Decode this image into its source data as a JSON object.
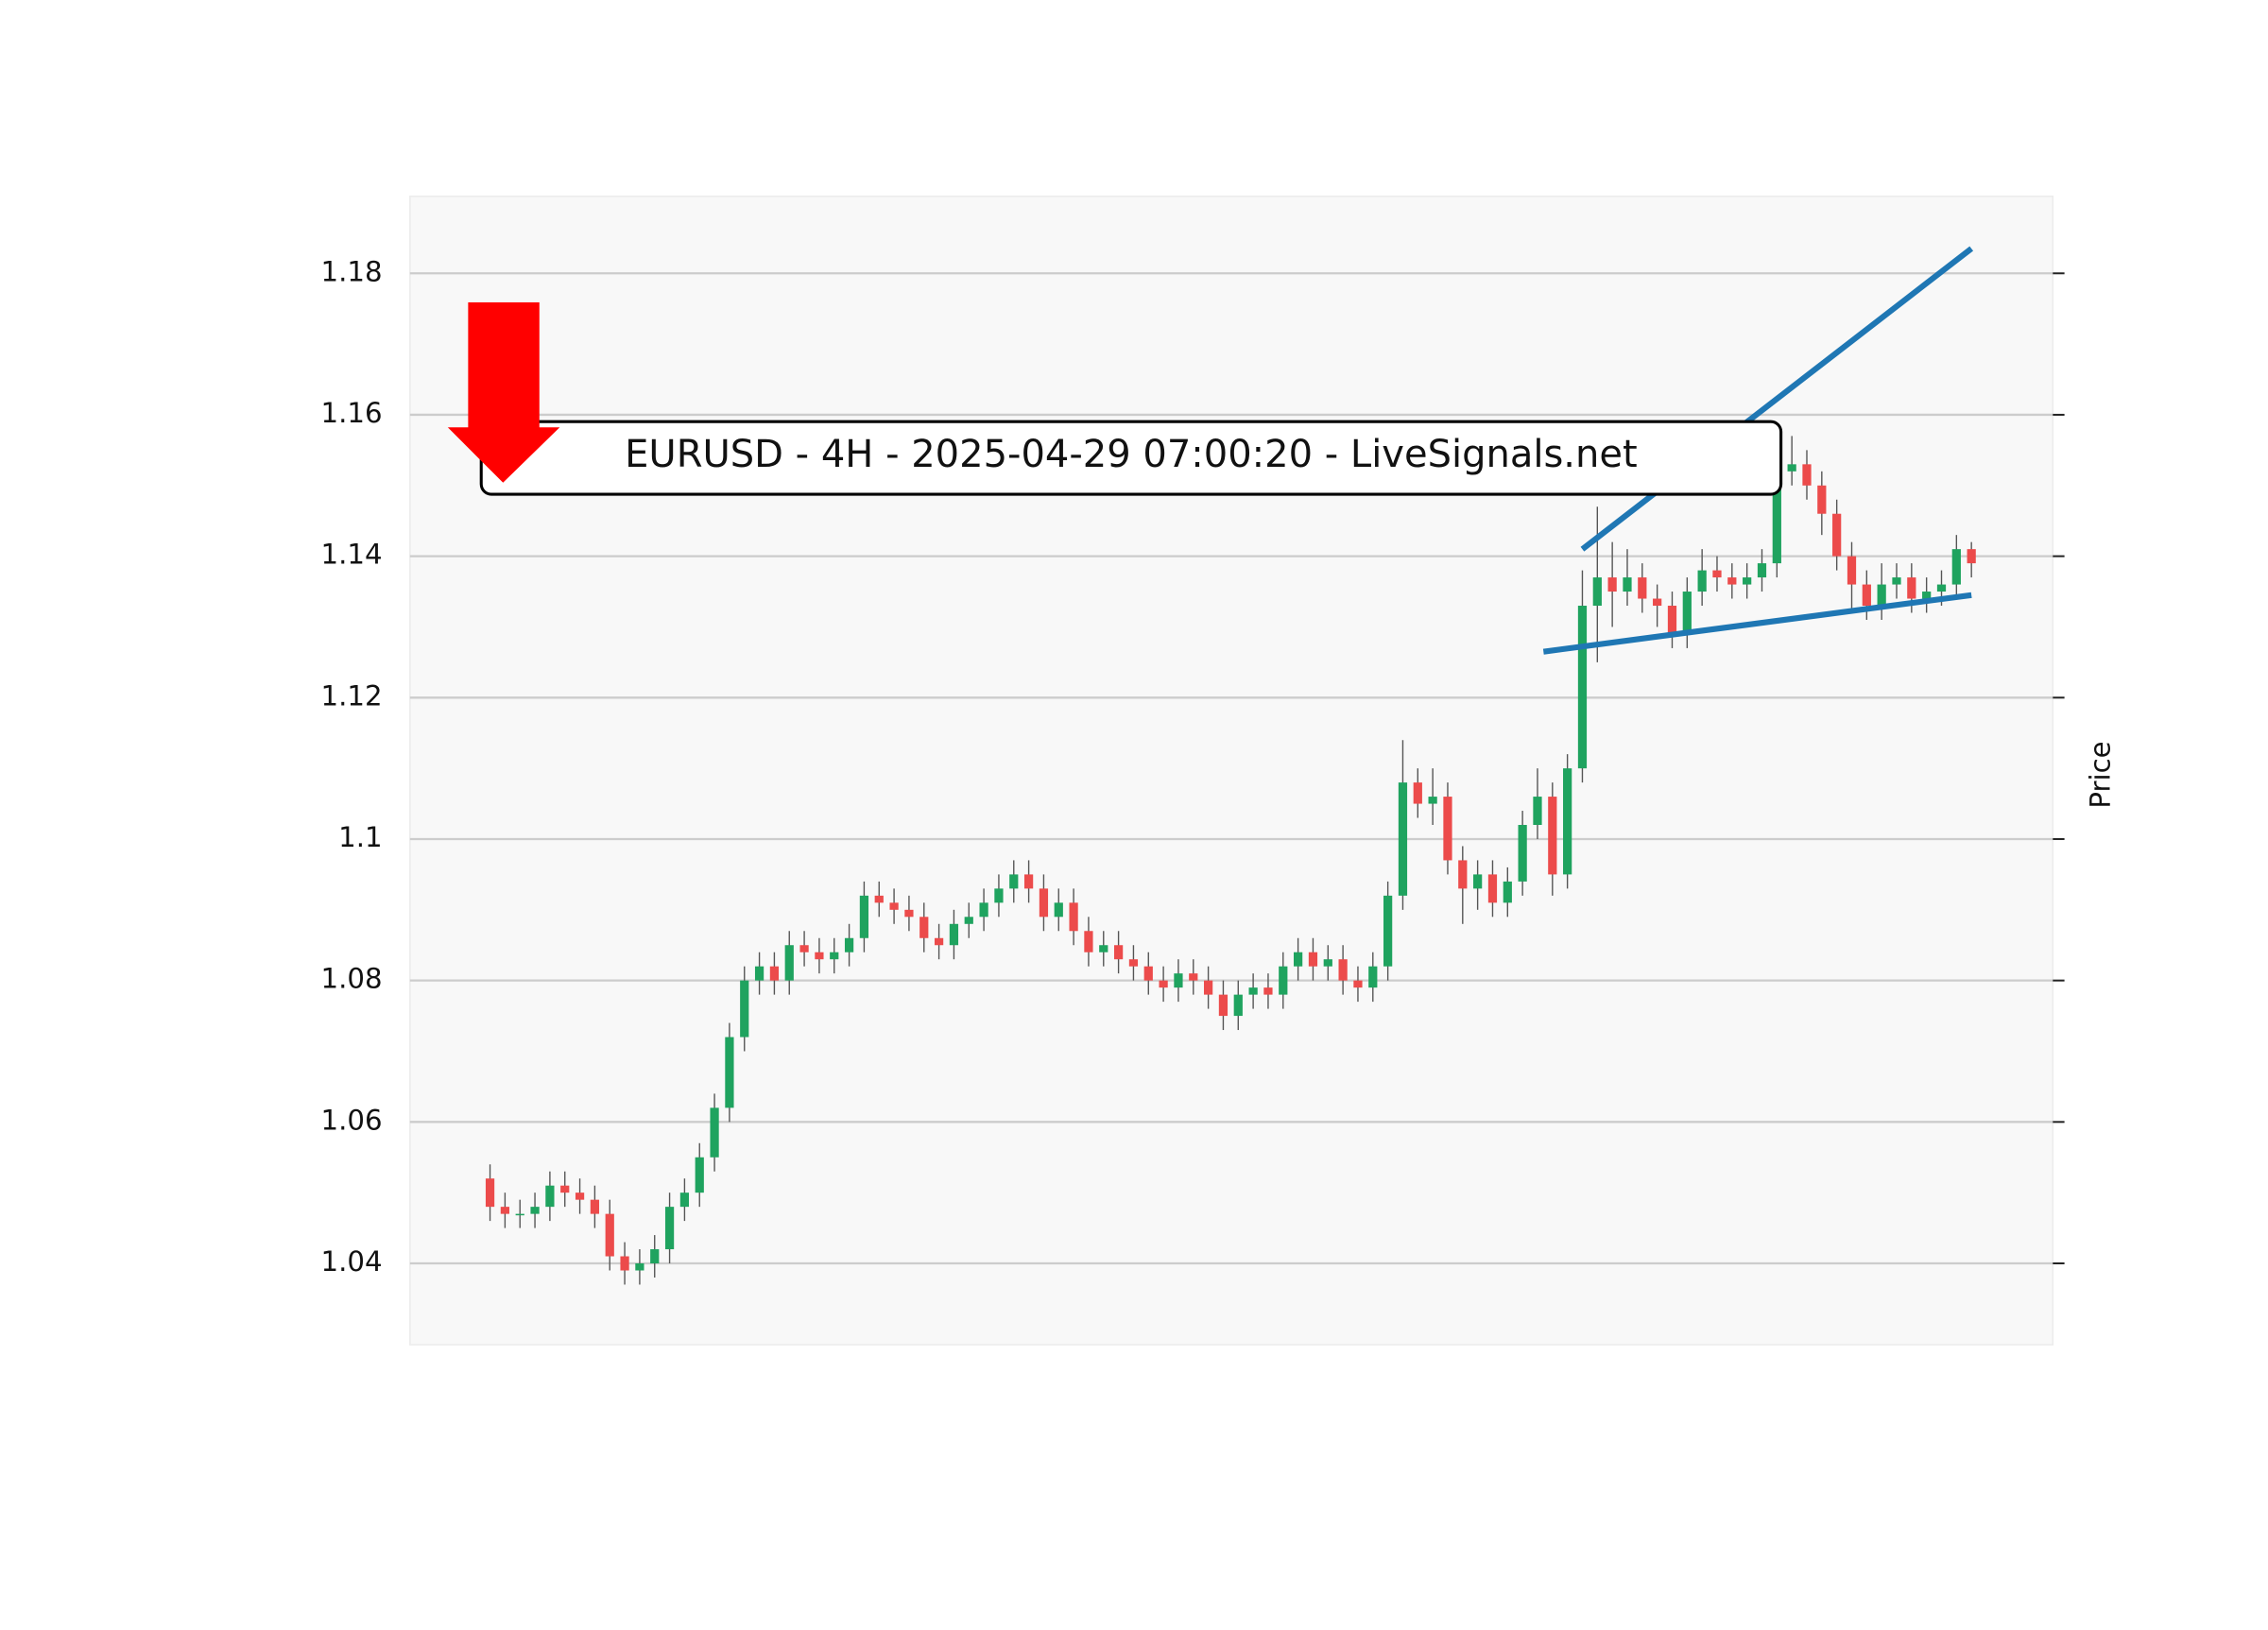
{
  "chart_data": {
    "type": "candlestick",
    "title": "EURUSD - 4H - 2025-04-29 07:00:20 - LiveSignals.net",
    "y_label": "Price",
    "ylim": [
      1.0285,
      1.1909
    ],
    "yticks": [
      1.04,
      1.06,
      1.08,
      1.1,
      {
        "value": 1.12,
        "label": "1.12"
      },
      1.14,
      1.16,
      1.18
    ],
    "xlim": [
      -5.35,
      104.44
    ],
    "grid": true,
    "up_color": "#1fa35f",
    "down_color": "#ec4b4b",
    "open": [
      1.052,
      1.048,
      1.047,
      1.047,
      1.048,
      1.051,
      1.05,
      1.049,
      1.047,
      1.041,
      1.039,
      1.04,
      1.042,
      1.048,
      1.05,
      1.055,
      1.062,
      1.072,
      1.08,
      1.082,
      1.08,
      1.085,
      1.084,
      1.083,
      1.084,
      1.086,
      1.092,
      1.091,
      1.09,
      1.089,
      1.086,
      1.085,
      1.088,
      1.089,
      1.091,
      1.093,
      1.095,
      1.093,
      1.089,
      1.091,
      1.087,
      1.084,
      1.085,
      1.083,
      1.082,
      1.08,
      1.079,
      1.081,
      1.08,
      1.078,
      1.075,
      1.078,
      1.079,
      1.078,
      1.082,
      1.084,
      1.082,
      1.083,
      1.08,
      1.079,
      1.082,
      1.092,
      1.108,
      1.105,
      1.106,
      1.097,
      1.093,
      1.095,
      1.091,
      1.094,
      1.102,
      1.106,
      1.095,
      1.11,
      1.133,
      1.137,
      1.135,
      1.137,
      1.134,
      1.133,
      1.129,
      1.135,
      1.138,
      1.137,
      1.136,
      1.137,
      1.139,
      1.152,
      1.153,
      1.15,
      1.146,
      1.14,
      1.136,
      1.133,
      1.136,
      1.137,
      1.134,
      1.135,
      1.136,
      1.141
    ],
    "high": [
      1.054,
      1.05,
      1.049,
      1.05,
      1.053,
      1.053,
      1.052,
      1.051,
      1.049,
      1.043,
      1.042,
      1.044,
      1.05,
      1.052,
      1.057,
      1.064,
      1.074,
      1.082,
      1.084,
      1.084,
      1.087,
      1.087,
      1.086,
      1.086,
      1.088,
      1.094,
      1.094,
      1.093,
      1.092,
      1.091,
      1.088,
      1.09,
      1.091,
      1.093,
      1.095,
      1.097,
      1.097,
      1.095,
      1.093,
      1.093,
      1.089,
      1.087,
      1.087,
      1.085,
      1.084,
      1.082,
      1.083,
      1.083,
      1.082,
      1.08,
      1.08,
      1.081,
      1.081,
      1.084,
      1.086,
      1.086,
      1.085,
      1.085,
      1.082,
      1.084,
      1.094,
      1.114,
      1.11,
      1.11,
      1.108,
      1.099,
      1.097,
      1.097,
      1.096,
      1.104,
      1.11,
      1.108,
      1.112,
      1.138,
      1.147,
      1.142,
      1.141,
      1.139,
      1.136,
      1.135,
      1.137,
      1.141,
      1.14,
      1.139,
      1.139,
      1.141,
      1.154,
      1.157,
      1.155,
      1.152,
      1.148,
      1.142,
      1.138,
      1.139,
      1.139,
      1.139,
      1.137,
      1.138,
      1.143,
      1.142
    ],
    "low": [
      1.046,
      1.045,
      1.045,
      1.045,
      1.046,
      1.048,
      1.047,
      1.045,
      1.039,
      1.037,
      1.037,
      1.038,
      1.04,
      1.046,
      1.048,
      1.053,
      1.06,
      1.07,
      1.078,
      1.078,
      1.078,
      1.082,
      1.081,
      1.081,
      1.082,
      1.084,
      1.089,
      1.088,
      1.087,
      1.084,
      1.083,
      1.083,
      1.086,
      1.087,
      1.089,
      1.091,
      1.091,
      1.087,
      1.087,
      1.085,
      1.082,
      1.082,
      1.081,
      1.08,
      1.078,
      1.077,
      1.077,
      1.078,
      1.076,
      1.073,
      1.073,
      1.076,
      1.076,
      1.076,
      1.08,
      1.08,
      1.08,
      1.078,
      1.077,
      1.077,
      1.08,
      1.09,
      1.103,
      1.102,
      1.095,
      1.088,
      1.09,
      1.089,
      1.089,
      1.092,
      1.1,
      1.092,
      1.093,
      1.108,
      1.125,
      1.13,
      1.133,
      1.132,
      1.13,
      1.127,
      1.127,
      1.133,
      1.135,
      1.134,
      1.134,
      1.135,
      1.137,
      1.15,
      1.148,
      1.143,
      1.138,
      1.132,
      1.131,
      1.131,
      1.134,
      1.132,
      1.132,
      1.133,
      1.134,
      1.137
    ],
    "close": [
      1.048,
      1.047,
      1.047,
      1.048,
      1.051,
      1.05,
      1.049,
      1.047,
      1.041,
      1.039,
      1.04,
      1.042,
      1.048,
      1.05,
      1.055,
      1.062,
      1.072,
      1.08,
      1.082,
      1.08,
      1.085,
      1.084,
      1.083,
      1.084,
      1.086,
      1.092,
      1.091,
      1.09,
      1.089,
      1.086,
      1.085,
      1.088,
      1.089,
      1.091,
      1.093,
      1.095,
      1.093,
      1.089,
      1.091,
      1.087,
      1.084,
      1.085,
      1.083,
      1.082,
      1.08,
      1.079,
      1.081,
      1.08,
      1.078,
      1.075,
      1.078,
      1.079,
      1.078,
      1.082,
      1.084,
      1.082,
      1.083,
      1.08,
      1.079,
      1.082,
      1.092,
      1.108,
      1.105,
      1.106,
      1.097,
      1.093,
      1.095,
      1.091,
      1.094,
      1.102,
      1.106,
      1.095,
      1.11,
      1.133,
      1.137,
      1.135,
      1.137,
      1.134,
      1.133,
      1.129,
      1.135,
      1.138,
      1.137,
      1.136,
      1.137,
      1.139,
      1.152,
      1.153,
      1.15,
      1.146,
      1.14,
      1.136,
      1.133,
      1.136,
      1.137,
      1.134,
      1.135,
      1.136,
      1.141,
      1.139
    ],
    "trendlines": [
      {
        "color": "#1f77b4",
        "x": [
          73,
          99
        ],
        "y": [
          1.141,
          1.1835
        ]
      },
      {
        "color": "#1f77b4",
        "x": [
          70.4,
          99
        ],
        "y": [
          1.1265,
          1.1345
        ]
      }
    ]
  }
}
